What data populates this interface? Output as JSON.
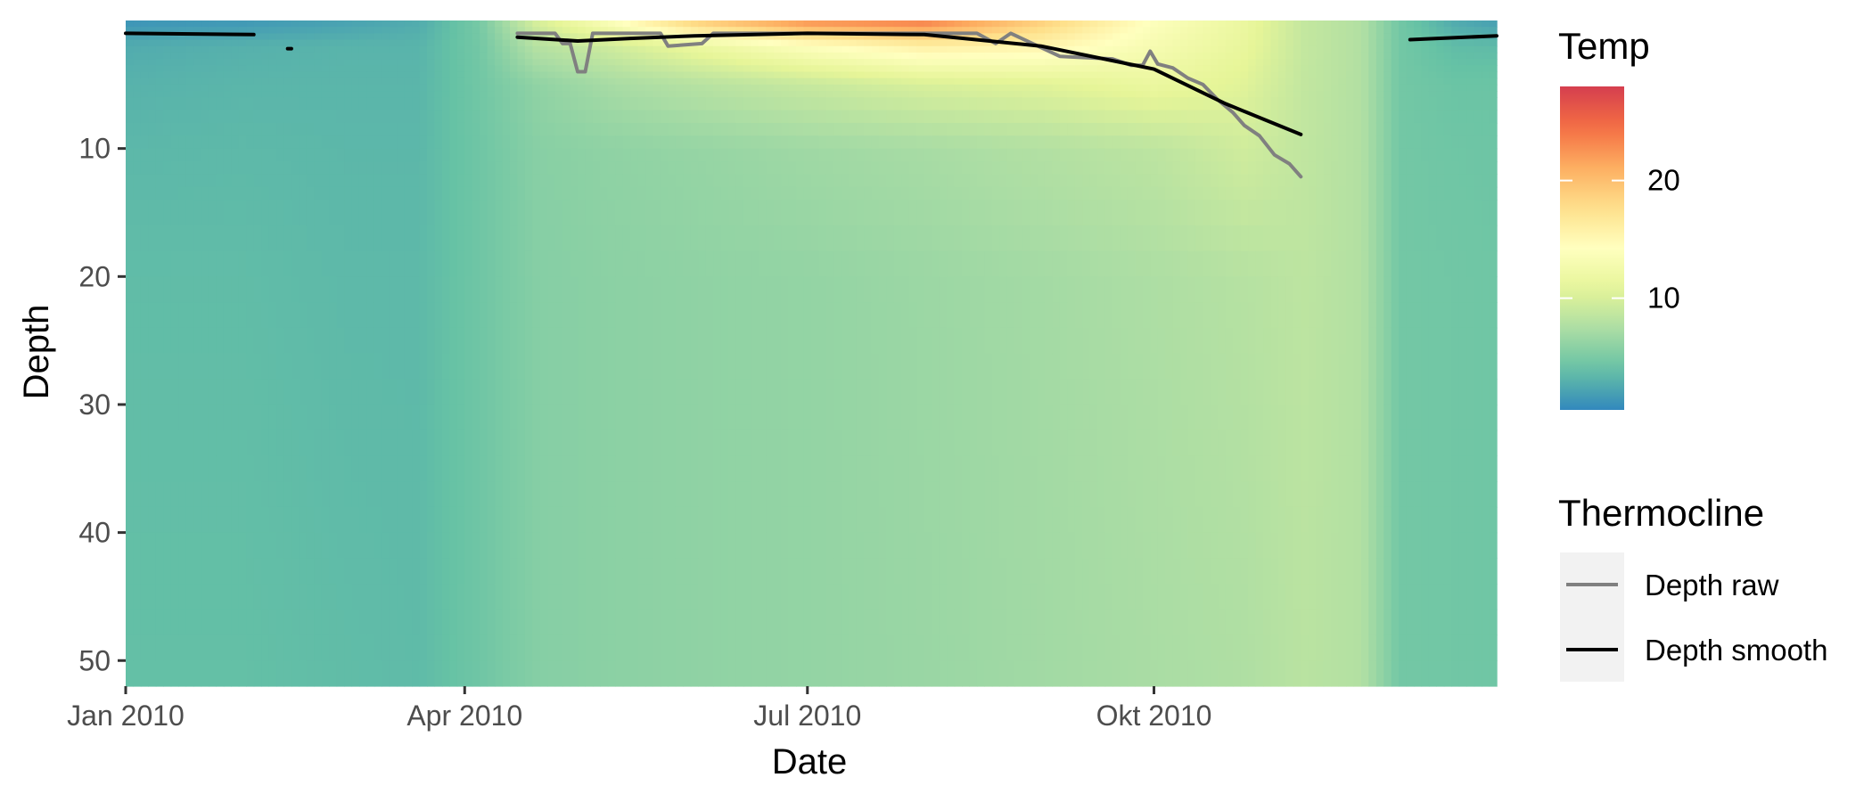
{
  "chart_data": {
    "type": "heatmap",
    "xlabel": "Date",
    "ylabel": "Depth",
    "x_ticks": [
      {
        "date": "2010-01-01",
        "label": "Jan 2010"
      },
      {
        "date": "2010-04-01",
        "label": "Apr 2010"
      },
      {
        "date": "2010-07-01",
        "label": "Jul 2010"
      },
      {
        "date": "2010-10-01",
        "label": "Okt 2010"
      }
    ],
    "x_range": [
      "2010-01-01",
      "2010-12-31"
    ],
    "y_ticks": [
      10,
      20,
      30,
      40,
      50
    ],
    "y_range": [
      0,
      52
    ],
    "y_reversed": true,
    "fill": {
      "name": "Temp",
      "range": [
        0.5,
        28
      ],
      "ticks": [
        10,
        20
      ],
      "palette": [
        "#3288bd",
        "#66c2a5",
        "#abdda4",
        "#e6f598",
        "#ffffbf",
        "#fee08b",
        "#fdae61",
        "#f46d43",
        "#d53e4f"
      ],
      "grid": [
        {
          "date": "2010-01-01",
          "depths": [
            0,
            2,
            5,
            10,
            20,
            52
          ],
          "temps": [
            1.2,
            2.6,
            3.0,
            3.3,
            3.6,
            3.8
          ]
        },
        {
          "date": "2010-02-01",
          "depths": [
            0,
            2,
            5,
            10,
            20,
            52
          ],
          "temps": [
            1.4,
            2.9,
            3.2,
            3.4,
            3.6,
            3.8
          ]
        },
        {
          "date": "2010-03-01",
          "depths": [
            0,
            2,
            5,
            10,
            20,
            52
          ],
          "temps": [
            2.0,
            3.1,
            3.2,
            3.3,
            3.4,
            3.6
          ]
        },
        {
          "date": "2010-03-20",
          "depths": [
            0,
            2,
            5,
            10,
            20,
            52
          ],
          "temps": [
            2.6,
            3.1,
            3.2,
            3.3,
            3.4,
            3.5
          ]
        },
        {
          "date": "2010-04-05",
          "depths": [
            0,
            2,
            5,
            10,
            20,
            52
          ],
          "temps": [
            4.8,
            4.6,
            4.5,
            4.4,
            4.4,
            4.4
          ]
        },
        {
          "date": "2010-04-20",
          "depths": [
            0,
            2,
            5,
            10,
            20,
            52
          ],
          "temps": [
            10.0,
            8.0,
            6.0,
            5.6,
            5.5,
            5.5
          ]
        },
        {
          "date": "2010-05-10",
          "depths": [
            0,
            2,
            5,
            10,
            20,
            52
          ],
          "temps": [
            14.0,
            9.5,
            7.2,
            6.0,
            5.8,
            5.8
          ]
        },
        {
          "date": "2010-06-01",
          "depths": [
            0,
            2,
            5,
            10,
            20,
            52
          ],
          "temps": [
            19.0,
            11.5,
            8.0,
            6.3,
            6.0,
            6.0
          ]
        },
        {
          "date": "2010-07-01",
          "depths": [
            0,
            2,
            5,
            10,
            20,
            52
          ],
          "temps": [
            23.0,
            14.0,
            9.0,
            6.8,
            6.2,
            6.2
          ]
        },
        {
          "date": "2010-08-01",
          "depths": [
            0,
            2,
            5,
            10,
            20,
            52
          ],
          "temps": [
            24.0,
            16.0,
            10.0,
            7.2,
            6.6,
            6.5
          ]
        },
        {
          "date": "2010-09-01",
          "depths": [
            0,
            2,
            5,
            10,
            20,
            52
          ],
          "temps": [
            19.0,
            15.5,
            10.5,
            7.8,
            7.0,
            6.9
          ]
        },
        {
          "date": "2010-10-01",
          "depths": [
            0,
            2,
            5,
            10,
            20,
            52
          ],
          "temps": [
            14.0,
            13.0,
            11.5,
            8.4,
            7.5,
            7.3
          ]
        },
        {
          "date": "2010-10-25",
          "depths": [
            0,
            2,
            5,
            10,
            20,
            52
          ],
          "temps": [
            11.5,
            11.2,
            10.5,
            9.5,
            8.0,
            7.6
          ]
        },
        {
          "date": "2010-11-10",
          "depths": [
            0,
            2,
            5,
            10,
            20,
            52
          ],
          "temps": [
            8.8,
            8.8,
            8.7,
            8.6,
            8.4,
            8.2
          ]
        },
        {
          "date": "2010-11-25",
          "depths": [
            0,
            2,
            5,
            10,
            20,
            52
          ],
          "temps": [
            7.8,
            7.8,
            7.8,
            7.8,
            7.8,
            7.8
          ]
        },
        {
          "date": "2010-12-05",
          "depths": [
            0,
            2,
            5,
            10,
            20,
            52
          ],
          "temps": [
            4.6,
            4.6,
            4.6,
            4.6,
            4.6,
            4.6
          ]
        },
        {
          "date": "2010-12-20",
          "depths": [
            0,
            2,
            5,
            10,
            20,
            52
          ],
          "temps": [
            2.5,
            3.6,
            4.2,
            4.4,
            4.5,
            4.5
          ]
        },
        {
          "date": "2010-12-31",
          "depths": [
            0,
            2,
            5,
            10,
            20,
            52
          ],
          "temps": [
            1.8,
            3.5,
            4.2,
            4.3,
            4.4,
            4.4
          ]
        }
      ]
    },
    "series": [
      {
        "name": "Depth raw",
        "color": "#808080",
        "segments": [
          [
            {
              "date": "2010-04-15",
              "depth": 1.0
            },
            {
              "date": "2010-04-25",
              "depth": 1.0
            },
            {
              "date": "2010-04-27",
              "depth": 1.8
            },
            {
              "date": "2010-04-29",
              "depth": 1.8
            },
            {
              "date": "2010-05-01",
              "depth": 4.0
            },
            {
              "date": "2010-05-03",
              "depth": 4.0
            },
            {
              "date": "2010-05-05",
              "depth": 1.0
            },
            {
              "date": "2010-05-23",
              "depth": 1.0
            },
            {
              "date": "2010-05-25",
              "depth": 2.0
            },
            {
              "date": "2010-06-03",
              "depth": 1.8
            },
            {
              "date": "2010-06-06",
              "depth": 1.0
            },
            {
              "date": "2010-08-15",
              "depth": 1.0
            },
            {
              "date": "2010-08-20",
              "depth": 1.8
            },
            {
              "date": "2010-08-24",
              "depth": 1.0
            },
            {
              "date": "2010-09-06",
              "depth": 2.8
            },
            {
              "date": "2010-09-20",
              "depth": 3.0
            },
            {
              "date": "2010-09-25",
              "depth": 3.5
            },
            {
              "date": "2010-09-28",
              "depth": 3.5
            },
            {
              "date": "2010-09-30",
              "depth": 2.4
            },
            {
              "date": "2010-10-02",
              "depth": 3.4
            },
            {
              "date": "2010-10-06",
              "depth": 3.7
            },
            {
              "date": "2010-10-10",
              "depth": 4.5
            },
            {
              "date": "2010-10-14",
              "depth": 5.0
            },
            {
              "date": "2010-10-18",
              "depth": 6.2
            },
            {
              "date": "2010-10-22",
              "depth": 7.2
            },
            {
              "date": "2010-10-25",
              "depth": 8.2
            },
            {
              "date": "2010-10-29",
              "depth": 9.0
            },
            {
              "date": "2010-11-02",
              "depth": 10.5
            },
            {
              "date": "2010-11-06",
              "depth": 11.2
            },
            {
              "date": "2010-11-09",
              "depth": 12.2
            }
          ]
        ]
      },
      {
        "name": "Depth smooth",
        "color": "#000000",
        "segments": [
          [
            {
              "date": "2010-01-01",
              "depth": 1.0
            },
            {
              "date": "2010-02-04",
              "depth": 1.1
            }
          ],
          [
            {
              "date": "2010-02-13",
              "depth": 2.2
            },
            {
              "date": "2010-02-14",
              "depth": 2.2
            }
          ],
          [
            {
              "date": "2010-04-15",
              "depth": 1.3
            },
            {
              "date": "2010-05-01",
              "depth": 1.6
            },
            {
              "date": "2010-05-15",
              "depth": 1.4
            },
            {
              "date": "2010-06-01",
              "depth": 1.2
            },
            {
              "date": "2010-07-01",
              "depth": 1.0
            },
            {
              "date": "2010-08-01",
              "depth": 1.1
            },
            {
              "date": "2010-09-01",
              "depth": 2.0
            },
            {
              "date": "2010-10-01",
              "depth": 3.8
            },
            {
              "date": "2010-10-20",
              "depth": 6.5
            },
            {
              "date": "2010-11-09",
              "depth": 8.9
            }
          ],
          [
            {
              "date": "2010-12-08",
              "depth": 1.5
            },
            {
              "date": "2010-12-31",
              "depth": 1.2
            }
          ]
        ]
      }
    ],
    "legend": {
      "placement": "right",
      "title": "Thermocline",
      "items": [
        "Depth raw",
        "Depth smooth"
      ]
    },
    "grid": false
  }
}
